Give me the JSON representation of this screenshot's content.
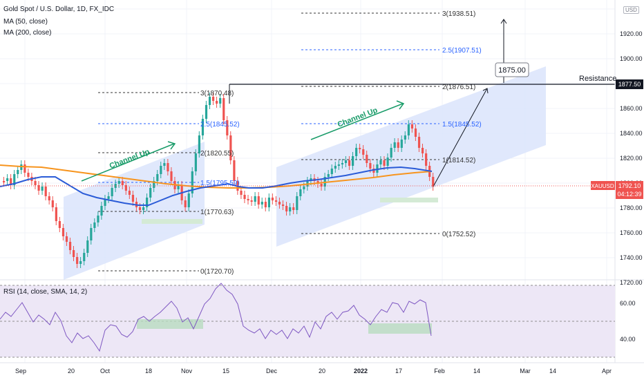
{
  "header": {
    "symbol_line": "Gold Spot / U.S. Dollar, 1D, FX_IDC",
    "ma50": "MA (50, close)",
    "ma200": "MA (200, close)",
    "currency_badge": "USD"
  },
  "rsi_label": "RSI (14, close, SMA, 14, 2)",
  "price_axis": {
    "ticks": [
      "1920.00",
      "1900.00",
      "1880.00",
      "1860.00",
      "1840.00",
      "1820.00",
      "1800.00",
      "1780.00",
      "1760.00",
      "1740.00",
      "1720.00"
    ],
    "tick_values": [
      1920,
      1900,
      1880,
      1860,
      1840,
      1820,
      1800,
      1780,
      1760,
      1740,
      1720
    ],
    "resistance_label": "Resistance",
    "resistance_value": "1877.50",
    "symbol_tag": "XAUUSD",
    "last_price": "1792.10",
    "countdown": "04:12:39"
  },
  "rsi_axis": {
    "ticks": [
      "60.00",
      "40.00"
    ]
  },
  "time_axis": {
    "labels": [
      "Sep",
      "20",
      "Oct",
      "18",
      "Nov",
      "15",
      "Dec",
      "20",
      "2022",
      "17",
      "Feb",
      "14",
      "Mar",
      "14",
      "Apr"
    ]
  },
  "annotations": {
    "channel_up_1": "Channel Up",
    "channel_up_2": "Channel Up",
    "target_box": "1875.00"
  },
  "fib_left": [
    "3(1870.48)",
    "2.5(1845.52)",
    "2(1820.55)",
    "1.5(1795.59)",
    "1(1770.63)",
    "0(1720.70)"
  ],
  "fib_right": [
    "3(1938.51)",
    "2.5(1907.51)",
    "2(1876.51)",
    "1.5(1845.52)",
    "1(1814.52)",
    "0(1752.52)"
  ],
  "colors": {
    "up": "#26a69a",
    "down": "#ef5350",
    "ma50": "#2a5bd7",
    "ma200": "#f7941d",
    "rsi": "#7e57c2",
    "rsi_band": "#ede7f6",
    "channel_fill": "#dbe4fb",
    "support_fill": "#d4ead5",
    "fib_blue": "#2962ff",
    "annotation_green": "#189b68"
  }
}
